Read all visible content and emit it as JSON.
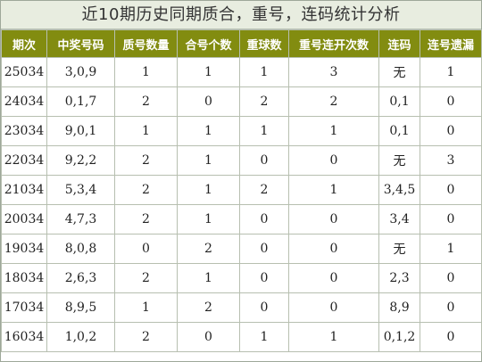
{
  "title": "近10期历史同期质合，重号，连码统计分析",
  "headers": [
    "期次",
    "中奖号码",
    "质号数量",
    "合号个数",
    "重球数",
    "重号连开次数",
    "连码",
    "连号遗漏"
  ],
  "colors": {
    "header_bg": "#828c10",
    "white": "#f5f5f5",
    "navy": "#173c6b",
    "maroon": "#690022",
    "salmon": "#f4b598",
    "light_blue": "#a7d2e4"
  },
  "rows": [
    {
      "issue": "25034",
      "numbers": "3,0,9",
      "prime_count": "1",
      "composite_count": "1",
      "repeat_count": "1",
      "repeat_streak": "3",
      "consecutive": "无",
      "consecutive_miss": "1",
      "styles": [
        "white",
        "white",
        "white",
        "white",
        "white",
        "navy",
        "white",
        "salmon"
      ]
    },
    {
      "issue": "24034",
      "numbers": "0,1,7",
      "prime_count": "2",
      "composite_count": "0",
      "repeat_count": "2",
      "repeat_streak": "2",
      "consecutive": "0,1",
      "consecutive_miss": "0",
      "styles": [
        "white",
        "white",
        "navy",
        "maroon",
        "navy",
        "light",
        "white",
        "maroon"
      ]
    },
    {
      "issue": "23034",
      "numbers": "9,0,1",
      "prime_count": "1",
      "composite_count": "1",
      "repeat_count": "1",
      "repeat_streak": "1",
      "consecutive": "0,1",
      "consecutive_miss": "0",
      "styles": [
        "white",
        "white",
        "white",
        "white",
        "white",
        "salmon",
        "white",
        "maroon"
      ]
    },
    {
      "issue": "22034",
      "numbers": "9,2,2",
      "prime_count": "2",
      "composite_count": "1",
      "repeat_count": "0",
      "repeat_streak": "0",
      "consecutive": "无",
      "consecutive_miss": "3",
      "styles": [
        "white",
        "white",
        "navy",
        "white",
        "maroon",
        "maroon",
        "white",
        "navy"
      ]
    },
    {
      "issue": "21034",
      "numbers": "5,3,4",
      "prime_count": "2",
      "composite_count": "1",
      "repeat_count": "2",
      "repeat_streak": "1",
      "consecutive": "3,4,5",
      "consecutive_miss": "0",
      "styles": [
        "white",
        "white",
        "navy",
        "white",
        "navy",
        "salmon",
        "white",
        "maroon"
      ]
    },
    {
      "issue": "20034",
      "numbers": "4,7,3",
      "prime_count": "2",
      "composite_count": "1",
      "repeat_count": "0",
      "repeat_streak": "0",
      "consecutive": "3,4",
      "consecutive_miss": "0",
      "styles": [
        "white",
        "white",
        "navy",
        "white",
        "maroon",
        "maroon",
        "white",
        "maroon"
      ]
    },
    {
      "issue": "19034",
      "numbers": "8,0,8",
      "prime_count": "0",
      "composite_count": "2",
      "repeat_count": "0",
      "repeat_streak": "0",
      "consecutive": "无",
      "consecutive_miss": "1",
      "styles": [
        "white",
        "white",
        "maroon",
        "navy",
        "maroon",
        "maroon",
        "white",
        "salmon"
      ]
    },
    {
      "issue": "18034",
      "numbers": "2,6,3",
      "prime_count": "2",
      "composite_count": "1",
      "repeat_count": "0",
      "repeat_streak": "0",
      "consecutive": "2,3",
      "consecutive_miss": "0",
      "styles": [
        "white",
        "white",
        "navy",
        "white",
        "maroon",
        "maroon",
        "white",
        "maroon"
      ]
    },
    {
      "issue": "17034",
      "numbers": "8,9,5",
      "prime_count": "1",
      "composite_count": "2",
      "repeat_count": "0",
      "repeat_streak": "0",
      "consecutive": "8,9",
      "consecutive_miss": "0",
      "styles": [
        "white",
        "white",
        "white",
        "navy",
        "maroon",
        "maroon",
        "white",
        "maroon"
      ]
    },
    {
      "issue": "16034",
      "numbers": "1,0,2",
      "prime_count": "2",
      "composite_count": "0",
      "repeat_count": "1",
      "repeat_streak": "1",
      "consecutive": "0,1,2",
      "consecutive_miss": "0",
      "styles": [
        "white",
        "white",
        "navy",
        "maroon",
        "white",
        "salmon",
        "white",
        "maroon"
      ]
    }
  ]
}
